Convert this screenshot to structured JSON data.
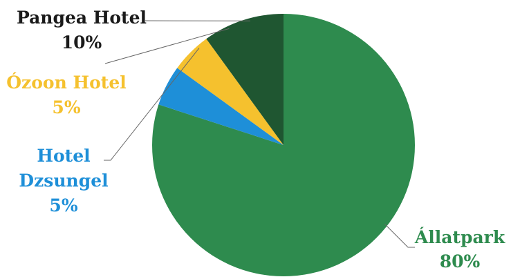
{
  "chart_data": {
    "type": "pie",
    "title": "",
    "slices": [
      {
        "label": "Állatpark",
        "value": 80,
        "value_label": "80%",
        "color": "#2e8b4e"
      },
      {
        "label": "Hotel Dzsungel",
        "label_lines": [
          "Hotel",
          "Dzsungel"
        ],
        "value": 5,
        "value_label": "5%",
        "color": "#1e8fd8"
      },
      {
        "label": "Ózoon Hotel",
        "value": 5,
        "value_label": "5%",
        "color": "#f5c12e"
      },
      {
        "label": "Pangea Hotel",
        "value": 10,
        "value_label": "10%",
        "color": "#1f5631"
      }
    ],
    "label_colors": {
      "Állatpark": "#2e8b4e",
      "Hotel Dzsungel": "#1e8fd8",
      "Ózoon Hotel": "#f5c12e",
      "Pangea Hotel": "#1a1a1a"
    },
    "legend": "none"
  }
}
